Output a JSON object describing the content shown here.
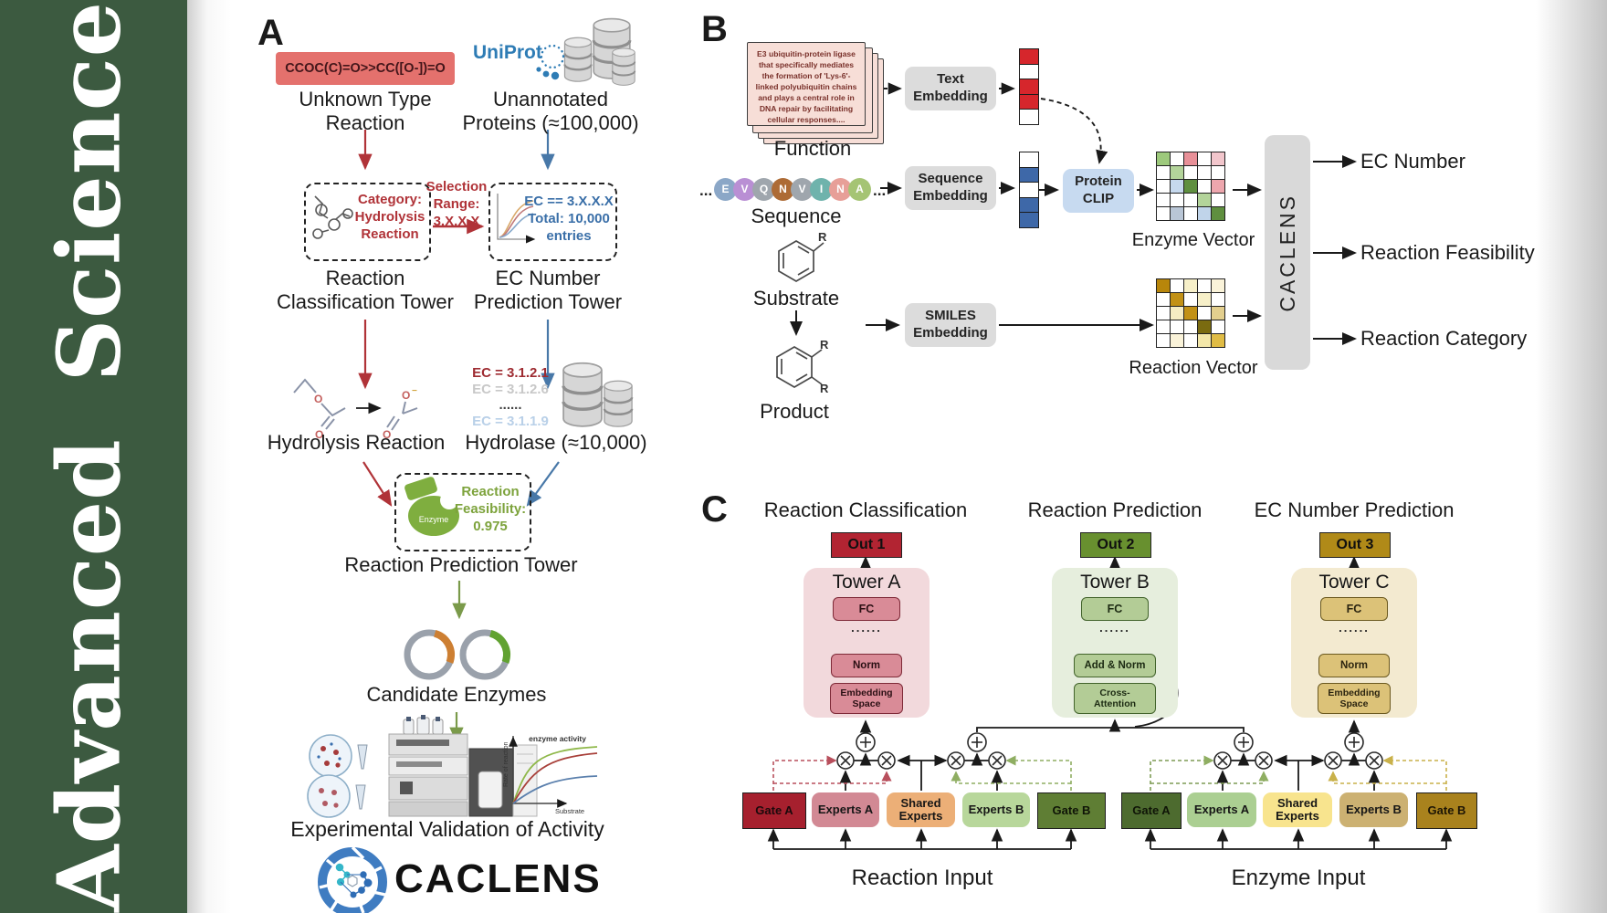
{
  "journal": {
    "name": "Advanced Science"
  },
  "panel_a": {
    "label": "A",
    "smiles_box": "CCOC(C)=O>>CC([O-])=O",
    "unknown_reaction_label": "Unknown Type\nReaction",
    "uniprot_logo": "UniProt",
    "unannotated_label": "Unannotated\nProteins (≈100,000)",
    "category_box": "Category:\nHydrolysis\nReaction",
    "selection_range": "Selection\nRange:\n3.X.X.X",
    "ec_box": "EC == 3.X.X.X\nTotal: 10,000\nentries",
    "classification_tower_label": "Reaction\nClassification Tower",
    "ec_tower_label": "EC Number\nPrediction Tower",
    "hydrolysis_label": "Hydrolysis Reaction",
    "ec_list": [
      {
        "text": "EC = 3.1.2.1",
        "color": "#9e2b31"
      },
      {
        "text": "EC = 3.1.2.6",
        "color": "#c8c8c8"
      },
      {
        "text": "......",
        "color": "#444444"
      },
      {
        "text": "EC = 3.1.1.9",
        "color": "#b9d0e8"
      }
    ],
    "hydrolase_label": "Hydrolase (≈10,000)",
    "enzyme_icon_label": "Enzyme",
    "feasibility_box": "Reaction\nFeasibility:\n0.975",
    "prediction_tower_label": "Reaction Prediction Tower",
    "candidate_label": "Candidate Enzymes",
    "validation_label": "Experimental Validation of Activity",
    "activity_plot": {
      "legend": "enzyme activity",
      "ylabel": "Rate of reaction",
      "xlabel": "Substrate"
    },
    "brand": "CACLENS"
  },
  "panel_b": {
    "label": "B",
    "function_card": "E3 ubiquitin-protein ligase that specifically mediates the formation of 'Lys-6'-linked polyubiquitin chains and plays a central role in DNA repair by facilitating cellular responses....",
    "function_label": "Function",
    "ellipsis": "...",
    "sequence_residues": [
      {
        "letter": "E",
        "color": "#8ba7c7"
      },
      {
        "letter": "V",
        "color": "#b98fd4"
      },
      {
        "letter": "Q",
        "color": "#9fa6ad"
      },
      {
        "letter": "N",
        "color": "#ad6b35"
      },
      {
        "letter": "V",
        "color": "#9fa6ad"
      },
      {
        "letter": "I",
        "color": "#6fb3ac"
      },
      {
        "letter": "N",
        "color": "#e79f98"
      },
      {
        "letter": "A",
        "color": "#a5c474"
      }
    ],
    "sequence_label": "Sequence",
    "substrate_label": "Substrate",
    "product_label": "Product",
    "r_group": "R",
    "text_embedding": "Text\nEmbedding",
    "sequence_embedding": "Sequence\nEmbedding",
    "smiles_embedding": "SMILES\nEmbedding",
    "protein_clip": "Protein\nCLIP",
    "text_vector": [
      "#d6262c",
      "#ffffff",
      "#d6262c",
      "#d6262c",
      "#ffffff"
    ],
    "sequence_vector": [
      "#ffffff",
      "#3e68a8",
      "#ffffff",
      "#3e68a8",
      "#3e68a8"
    ],
    "enzyme_matrix": [
      [
        "#9dc97c",
        "#ffffff",
        "#e89098",
        "#ffffff",
        "#f2c6cc"
      ],
      [
        "#ffffff",
        "#b3d49a",
        "#ffffff",
        "#ffffff",
        "#ffffff"
      ],
      [
        "#ffffff",
        "#c6d9ee",
        "#5f8f3f",
        "#ffffff",
        "#eda6ad"
      ],
      [
        "#ffffff",
        "#ffffff",
        "#ffffff",
        "#b3d49a",
        "#ffffff"
      ],
      [
        "#ffffff",
        "#b9c6d6",
        "#ffffff",
        "#c0d4ea",
        "#5f8f3f"
      ]
    ],
    "reaction_matrix": [
      [
        "#b8860b",
        "#ffffff",
        "#f7f0c9",
        "#ffffff",
        "#faf3d9"
      ],
      [
        "#ffffff",
        "#c29116",
        "#ffffff",
        "#f7f0c9",
        "#ffffff"
      ],
      [
        "#ffffff",
        "#f5ecc2",
        "#c29116",
        "#ffffff",
        "#e3cf8e"
      ],
      [
        "#ffffff",
        "#ffffff",
        "#ffffff",
        "#7a6b10",
        "#ffffff"
      ],
      [
        "#ffffff",
        "#faf3d9",
        "#ffffff",
        "#f3e7a9",
        "#e0bc45"
      ]
    ],
    "enzyme_vector_label": "Enzyme Vector",
    "reaction_vector_label": "Reaction Vector",
    "caclens_label": "CACLENS",
    "outputs": [
      "EC Number",
      "Reaction Feasibility",
      "Reaction Category"
    ]
  },
  "panel_c": {
    "label": "C",
    "towers": [
      {
        "header": "Reaction Classification",
        "out": "Out 1",
        "name": "Tower A",
        "fc": "FC",
        "dots": "......",
        "mid": "Norm",
        "bottom": "Embedding\nSpace"
      },
      {
        "header": "Reaction Prediction",
        "out": "Out 2",
        "name": "Tower B",
        "fc": "FC",
        "dots": "......",
        "mid": "Add & Norm",
        "bottom": "Cross-\nAttention"
      },
      {
        "header": "EC Number Prediction",
        "out": "Out 3",
        "name": "Tower C",
        "fc": "FC",
        "dots": "......",
        "mid": "Norm",
        "bottom": "Embedding\nSpace"
      }
    ],
    "moe_left": {
      "gate_a": "Gate A",
      "experts_a": "Experts A",
      "shared": "Shared\nExperts",
      "experts_b": "Experts B",
      "gate_b": "Gate B",
      "input": "Reaction Input"
    },
    "moe_right": {
      "gate_a": "Gate A",
      "experts_a": "Experts A",
      "shared": "Shared\nExperts",
      "experts_b": "Experts B",
      "gate_b": "Gate B",
      "input": "Enzyme Input"
    },
    "colors": {
      "out1": "#b22432",
      "out2": "#68902f",
      "out3": "#b08a18"
    }
  }
}
